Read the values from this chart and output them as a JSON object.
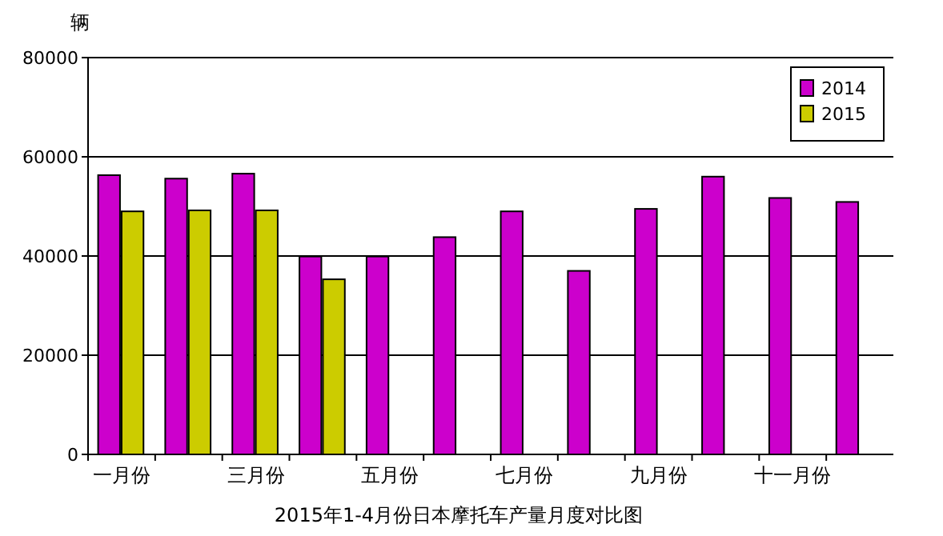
{
  "chart_data": {
    "type": "bar",
    "title": "2015年1-4月份日本摩托车产量月度对比图",
    "ylabel": "辆",
    "categories": [
      "一月份",
      null,
      "三月份",
      null,
      "五月份",
      null,
      "七月份",
      null,
      "九月份",
      null,
      "十一月份",
      null
    ],
    "series": [
      {
        "name": "2014",
        "color": "#cc00cc",
        "values": [
          56300,
          55600,
          56600,
          39900,
          39900,
          43800,
          49000,
          37000,
          49500,
          56000,
          51700,
          50900
        ]
      },
      {
        "name": "2015",
        "color": "#cccc00",
        "values": [
          49000,
          49200,
          49200,
          35300,
          null,
          null,
          null,
          null,
          null,
          null,
          null,
          null
        ]
      }
    ],
    "ylim": [
      0,
      80000
    ],
    "yticks": [
      0,
      20000,
      40000,
      60000,
      80000
    ],
    "grid": "y",
    "legend": "top right"
  }
}
